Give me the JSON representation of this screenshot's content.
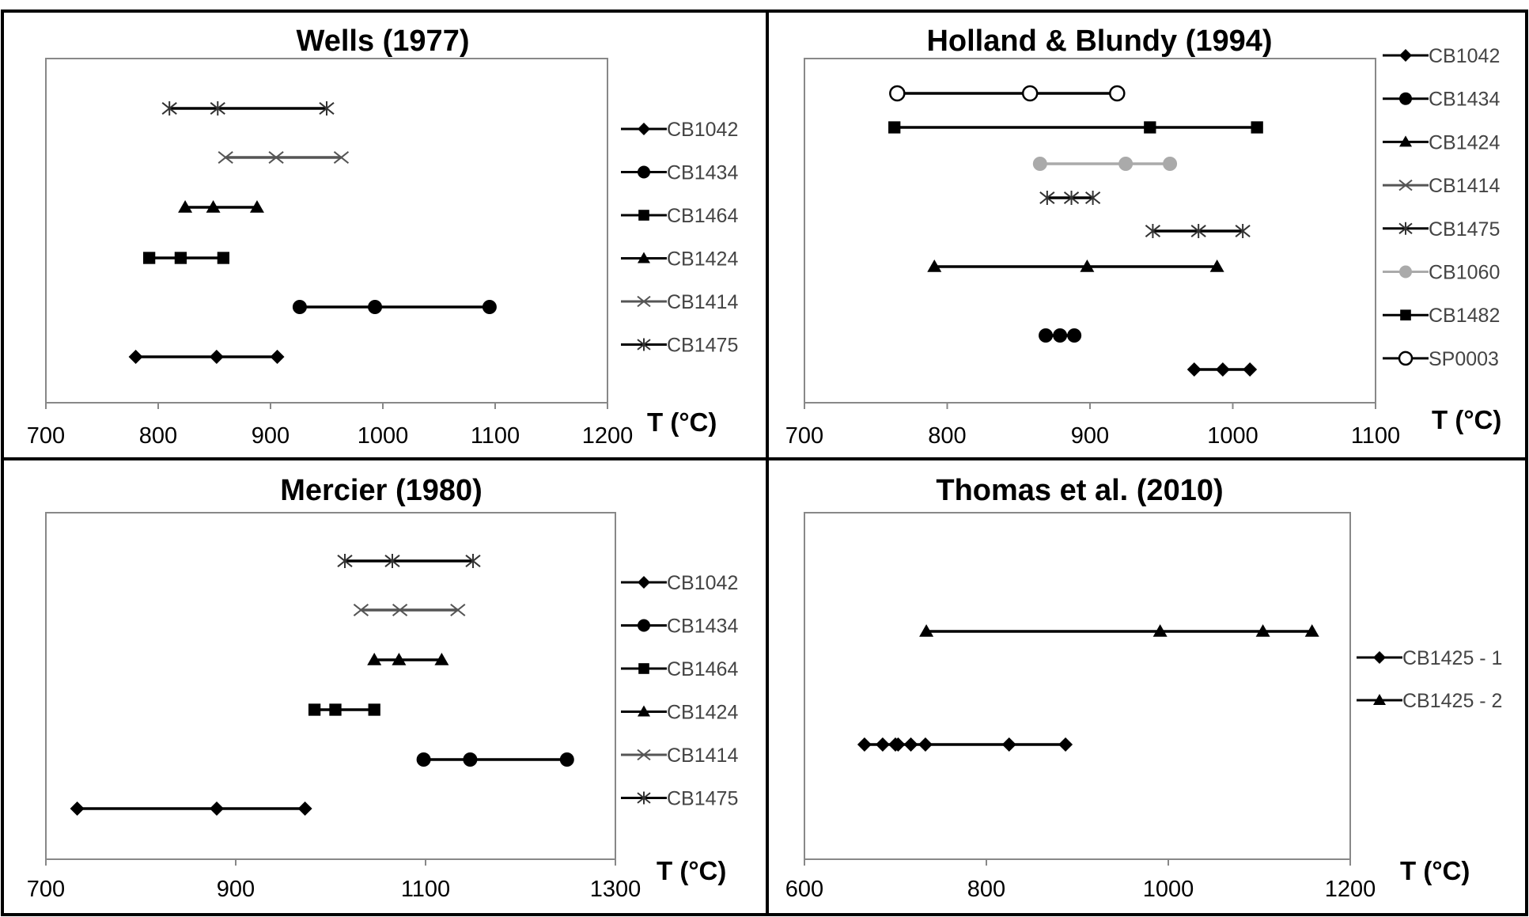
{
  "chart_data": [
    {
      "type": "scatter",
      "title": "Wells (1977)",
      "xlabel": "T (°C)",
      "xlim": [
        700,
        1200
      ],
      "xticks": [
        700,
        800,
        900,
        1000,
        1100,
        1200
      ],
      "legend_position": "right",
      "series": [
        {
          "name": "CB1042",
          "marker": "diamond",
          "color": "#000000",
          "x": [
            780,
            852,
            906
          ],
          "row": 6
        },
        {
          "name": "CB1434",
          "marker": "circle",
          "color": "#000000",
          "x": [
            926,
            993,
            1095
          ],
          "row": 5
        },
        {
          "name": "CB1464",
          "marker": "square",
          "color": "#000000",
          "x": [
            792,
            820,
            858
          ],
          "row": 4
        },
        {
          "name": "CB1424",
          "marker": "triangle",
          "color": "#000000",
          "x": [
            824,
            849,
            888
          ],
          "row": 3
        },
        {
          "name": "CB1414",
          "marker": "x",
          "color": "#555555",
          "x": [
            860,
            905,
            963
          ],
          "row": 2
        },
        {
          "name": "CB1475",
          "marker": "star",
          "color": "#333333",
          "x": [
            810,
            853,
            950
          ],
          "row": 1
        }
      ]
    },
    {
      "type": "scatter",
      "title": "Holland & Blundy (1994)",
      "xlabel": "T (°C)",
      "xlim": [
        700,
        1100
      ],
      "xticks": [
        700,
        800,
        900,
        1000,
        1100
      ],
      "legend_position": "right",
      "series": [
        {
          "name": "CB1042",
          "marker": "diamond",
          "color": "#000000",
          "x": [
            973,
            993,
            1012
          ],
          "row": 8
        },
        {
          "name": "CB1434",
          "marker": "circle",
          "color": "#000000",
          "x": [
            869,
            879,
            889
          ],
          "row": 7
        },
        {
          "name": "CB1424",
          "marker": "triangle",
          "color": "#000000",
          "x": [
            791,
            898,
            989
          ],
          "row": 6
        },
        {
          "name": "CB1414",
          "marker": "x",
          "color": "#555555",
          "x": [],
          "row": 0
        },
        {
          "name": "CB1475",
          "marker": "star",
          "color": "#333333",
          "x": [
            870,
            887,
            902
          ],
          "row": 4
        },
        {
          "name": "CB1475",
          "marker": "star",
          "color": "#333333",
          "x": [
            944,
            976,
            1007
          ],
          "row": 5,
          "legend": false
        },
        {
          "name": "CB1060",
          "marker": "circle",
          "color": "#aaaaaa",
          "x": [
            865,
            925,
            956
          ],
          "row": 3
        },
        {
          "name": "CB1482",
          "marker": "square",
          "color": "#000000",
          "x": [
            763,
            942,
            1017
          ],
          "row": 2
        },
        {
          "name": "SP0003",
          "marker": "circle-open",
          "color": "#000000",
          "x": [
            765,
            858,
            919
          ],
          "row": 1
        }
      ]
    },
    {
      "type": "scatter",
      "title": "Mercier (1980)",
      "xlabel": "T (°C)",
      "xlim": [
        700,
        1300
      ],
      "xticks": [
        700,
        900,
        1100,
        1300
      ],
      "legend_position": "right",
      "series": [
        {
          "name": "CB1042",
          "marker": "diamond",
          "color": "#000000",
          "x": [
            733,
            880,
            973
          ],
          "row": 6
        },
        {
          "name": "CB1434",
          "marker": "circle",
          "color": "#000000",
          "x": [
            1098,
            1147,
            1249
          ],
          "row": 5
        },
        {
          "name": "CB1464",
          "marker": "square",
          "color": "#000000",
          "x": [
            983,
            1005,
            1046
          ],
          "row": 4
        },
        {
          "name": "CB1424",
          "marker": "triangle",
          "color": "#000000",
          "x": [
            1046,
            1072,
            1117
          ],
          "row": 3
        },
        {
          "name": "CB1414",
          "marker": "x",
          "color": "#555555",
          "x": [
            1032,
            1073,
            1134
          ],
          "row": 2
        },
        {
          "name": "CB1475",
          "marker": "star",
          "color": "#333333",
          "x": [
            1015,
            1065,
            1150
          ],
          "row": 1
        }
      ]
    },
    {
      "type": "scatter",
      "title": "Thomas et al. (2010)",
      "xlabel": "T (°C)",
      "xlim": [
        600,
        1200
      ],
      "xticks": [
        600,
        800,
        1000,
        1200
      ],
      "legend_position": "right",
      "series": [
        {
          "name": "CB1425 - 1",
          "marker": "diamond",
          "color": "#000000",
          "x": [
            666,
            686,
            700,
            703,
            717,
            733,
            825,
            887
          ],
          "row": 2
        },
        {
          "name": "CB1425 - 2",
          "marker": "triangle",
          "color": "#000000",
          "x": [
            734,
            991,
            1104,
            1158
          ],
          "row": 1
        }
      ]
    }
  ]
}
